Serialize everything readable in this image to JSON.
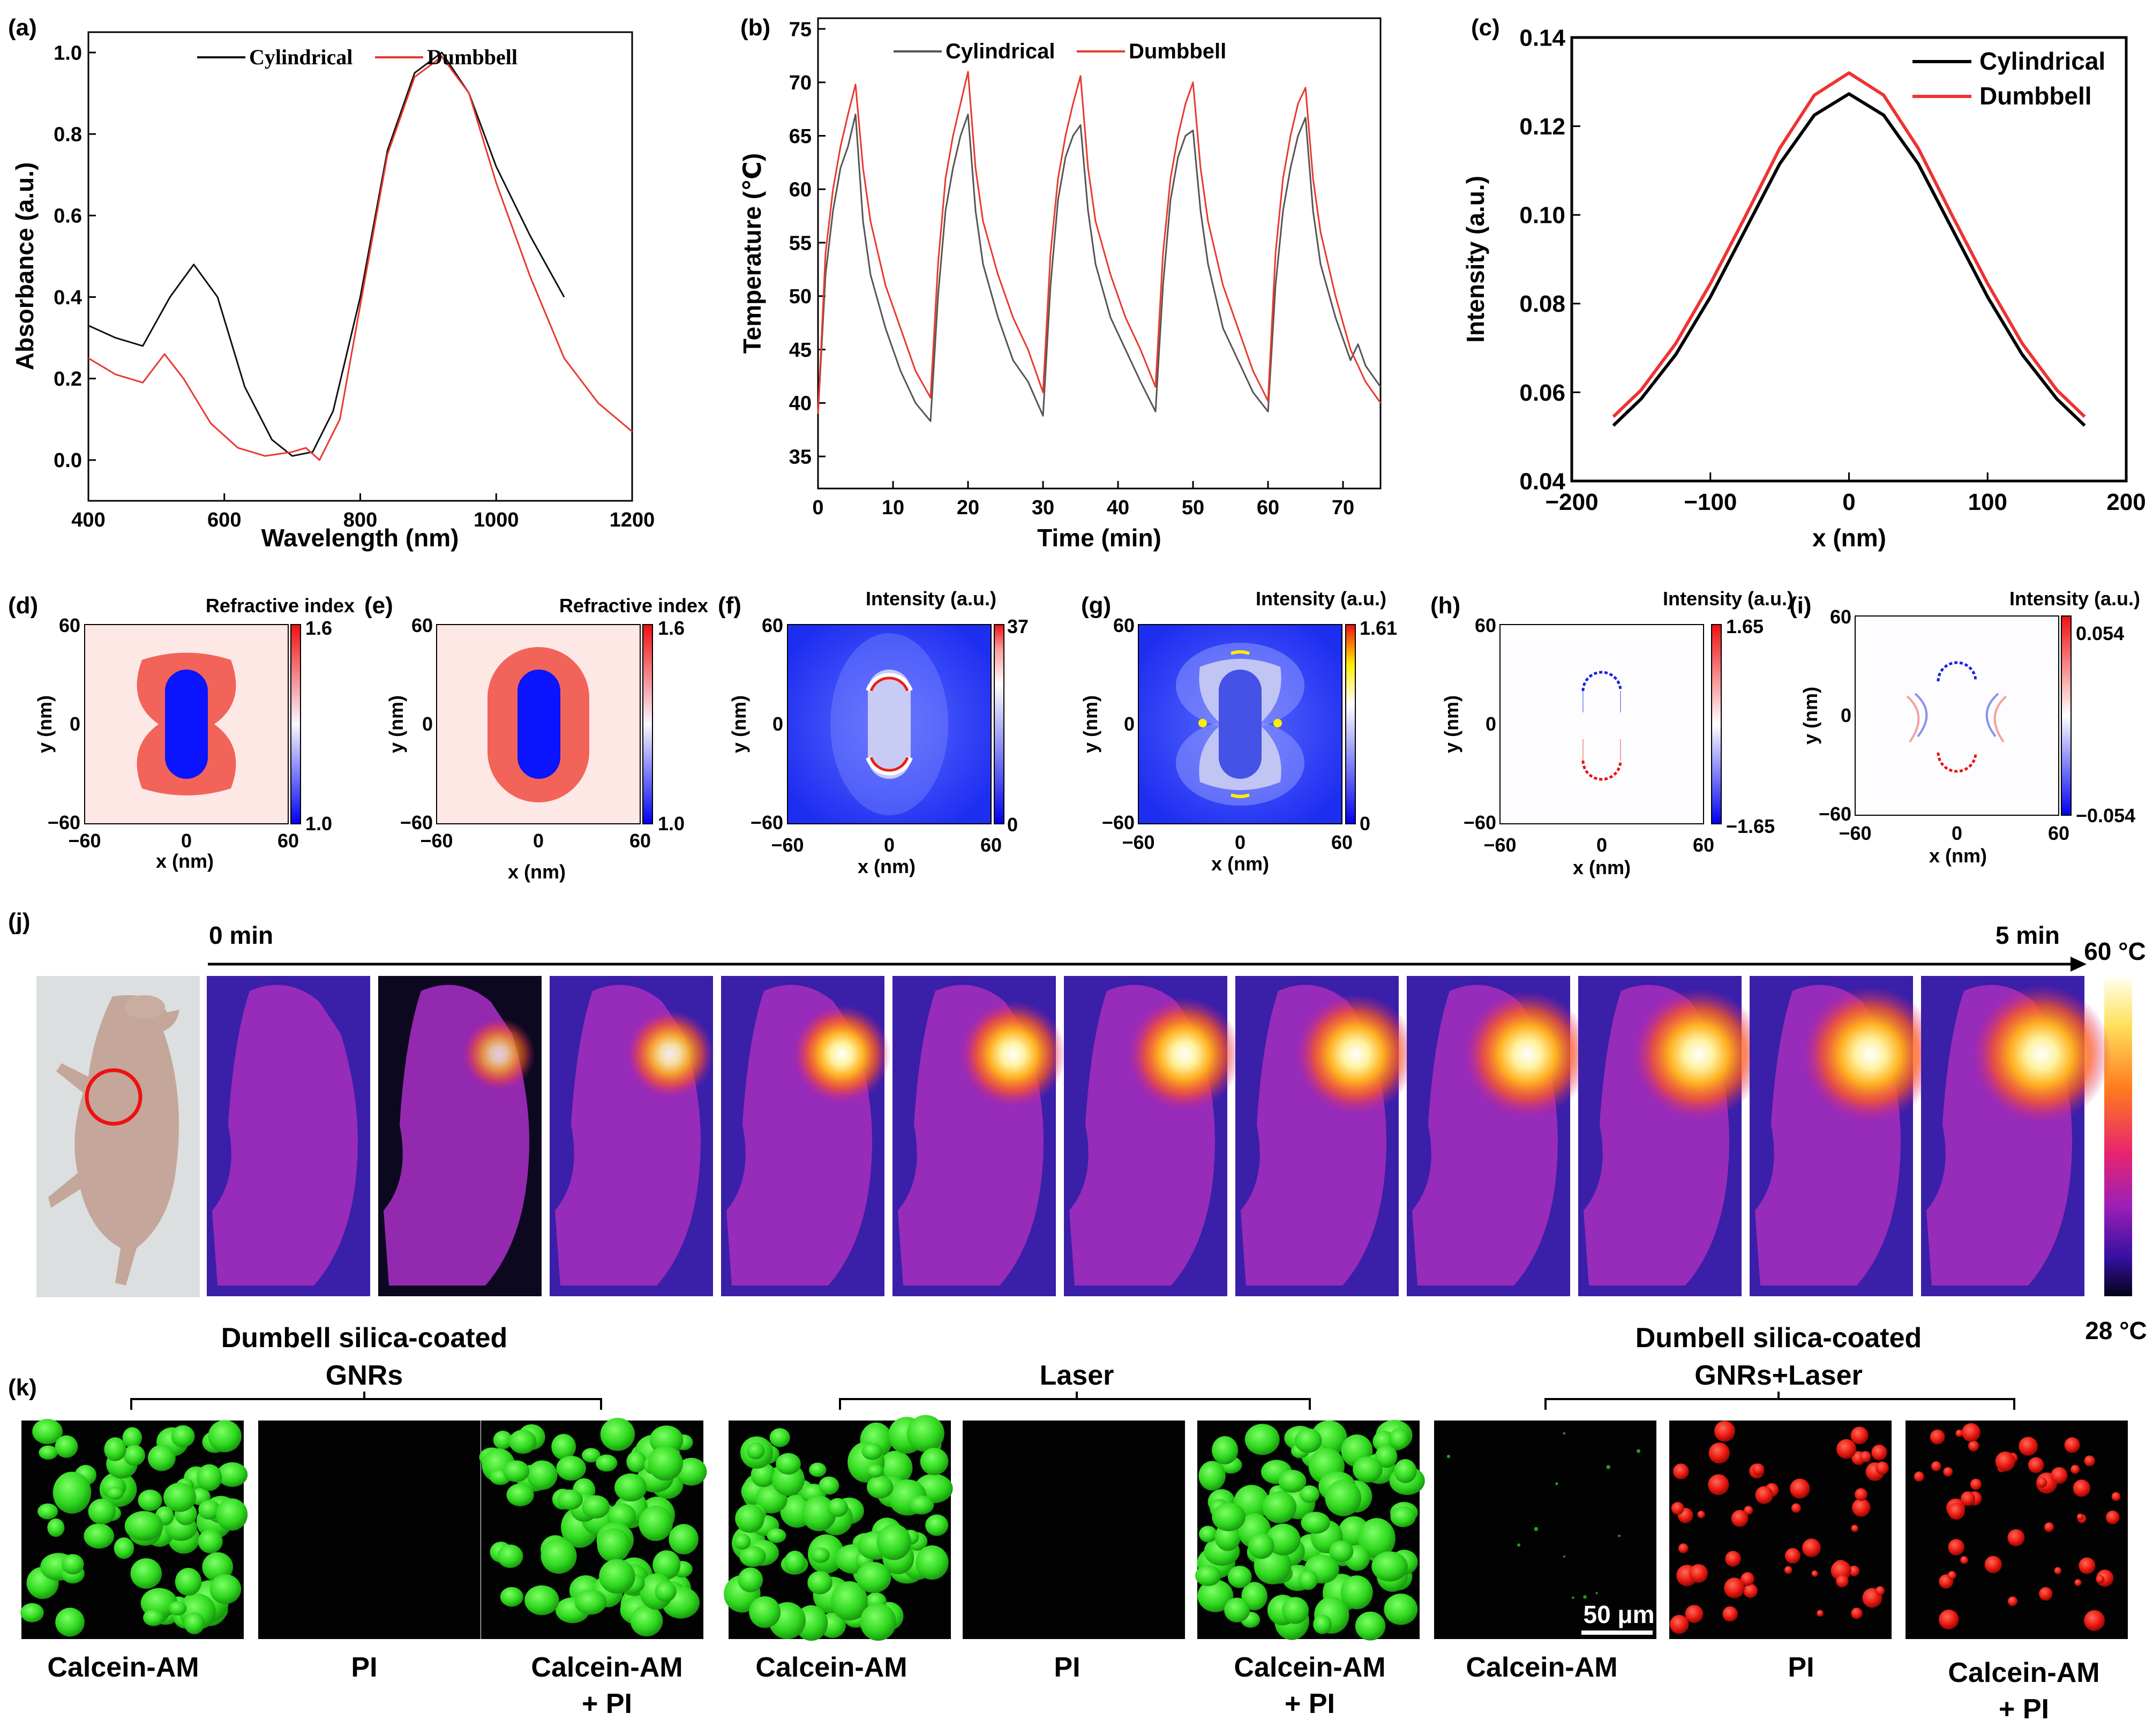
{
  "colors": {
    "black": "#111111",
    "red": "#e8392f",
    "pink": "#fde8e6",
    "blue": "#0a14ff",
    "salmon": "#f26459",
    "green": "#33ee22",
    "cellred": "#ee1c12"
  },
  "panels": {
    "a": "(a)",
    "b": "(b)",
    "c": "(c)",
    "d": "(d)",
    "e": "(e)",
    "f": "(f)",
    "g": "(g)",
    "h": "(h)",
    "i": "(i)",
    "j": "(j)",
    "k": "(k)"
  },
  "chart_data": [
    {
      "id": "a",
      "type": "line",
      "xlabel": "Wavelength (nm)",
      "ylabel": "Absorbance (a.u.)",
      "xlim": [
        400,
        1200
      ],
      "ylim": [
        -0.1,
        1.05
      ],
      "xticks": [
        400,
        600,
        800,
        1000,
        1200
      ],
      "yticks": [
        0.0,
        0.2,
        0.4,
        0.6,
        0.8,
        1.0
      ],
      "xtick_labels": [
        "400",
        "600",
        "800",
        "1000",
        "1200"
      ],
      "ytick_labels": [
        "0.0",
        "0.2",
        "0.4",
        "0.6",
        "0.8",
        "1.0"
      ],
      "legend": [
        "Cylindrical",
        "Dumbbell"
      ],
      "series": [
        {
          "name": "Cylindrical",
          "color": "#111111",
          "x": [
            400,
            440,
            480,
            520,
            555,
            590,
            630,
            670,
            700,
            730,
            760,
            800,
            840,
            880,
            920,
            960,
            1000,
            1050,
            1100
          ],
          "y": [
            0.33,
            0.3,
            0.28,
            0.4,
            0.48,
            0.4,
            0.18,
            0.05,
            0.01,
            0.02,
            0.12,
            0.4,
            0.76,
            0.95,
            1.0,
            0.9,
            0.72,
            0.55,
            0.4
          ]
        },
        {
          "name": "Dumbbell",
          "color": "#e8392f",
          "x": [
            400,
            440,
            480,
            512,
            540,
            580,
            620,
            660,
            700,
            720,
            740,
            770,
            800,
            840,
            880,
            920,
            960,
            1000,
            1050,
            1100,
            1150,
            1200
          ],
          "y": [
            0.25,
            0.21,
            0.19,
            0.26,
            0.2,
            0.09,
            0.03,
            0.01,
            0.02,
            0.03,
            0.0,
            0.1,
            0.38,
            0.75,
            0.94,
            0.99,
            0.9,
            0.68,
            0.45,
            0.25,
            0.14,
            0.07
          ]
        }
      ]
    },
    {
      "id": "b",
      "type": "line",
      "xlabel": "Time (min)",
      "ylabel": "Temperature (℃)",
      "xlim": [
        0,
        75
      ],
      "ylim": [
        32,
        76
      ],
      "xticks": [
        0,
        10,
        20,
        30,
        40,
        50,
        60,
        70
      ],
      "yticks": [
        35,
        40,
        45,
        50,
        55,
        60,
        65,
        70,
        75
      ],
      "xtick_labels": [
        "0",
        "10",
        "20",
        "30",
        "40",
        "50",
        "60",
        "70"
      ],
      "ytick_labels": [
        "35",
        "40",
        "45",
        "50",
        "55",
        "60",
        "65",
        "70",
        "75"
      ],
      "legend": [
        "Cylindrical",
        "Dumbbell"
      ],
      "series": [
        {
          "name": "Cylindrical",
          "color": "#555555",
          "x": [
            0,
            1,
            2,
            3,
            4,
            5,
            6,
            7,
            9,
            11,
            13,
            15,
            16,
            17,
            18,
            19,
            20,
            21,
            22,
            24,
            26,
            28,
            30,
            31,
            32,
            33,
            34,
            35,
            36,
            37,
            39,
            41,
            43,
            45,
            46,
            47,
            48,
            49,
            50,
            51,
            52,
            54,
            56,
            58,
            60,
            61,
            62,
            63,
            64,
            65,
            66,
            67,
            69,
            71,
            72,
            73,
            75
          ],
          "y": [
            39,
            52,
            58,
            62,
            64,
            67,
            57,
            52,
            47,
            43,
            40,
            38.3,
            50,
            58,
            62,
            65,
            67,
            58,
            53,
            48,
            44,
            42,
            38.8,
            51,
            59,
            63,
            65,
            66,
            58,
            53,
            48,
            45,
            42,
            39.2,
            51,
            59,
            63,
            65,
            65.5,
            58,
            53,
            47,
            44,
            41,
            39.2,
            51,
            58,
            62,
            65,
            66.7,
            58,
            53,
            48,
            44,
            45.5,
            43.5,
            41.5
          ]
        },
        {
          "name": "Dumbbell",
          "color": "#e8392f",
          "x": [
            0,
            1,
            2,
            3,
            4,
            5,
            6,
            7,
            9,
            11,
            13,
            15,
            16,
            17,
            18,
            19,
            20,
            21,
            22,
            24,
            26,
            28,
            30,
            31,
            32,
            33,
            34,
            35,
            36,
            37,
            39,
            41,
            43,
            45,
            46,
            47,
            48,
            49,
            50,
            51,
            52,
            54,
            56,
            58,
            60,
            61,
            62,
            63,
            64,
            65,
            66,
            67,
            69,
            71,
            73,
            75
          ],
          "y": [
            39,
            54,
            60,
            64,
            67,
            69.8,
            62,
            57,
            51,
            47,
            43,
            40.5,
            53,
            61,
            65,
            68,
            71,
            62,
            57,
            52,
            48,
            45,
            41,
            54,
            61,
            65,
            68,
            70.6,
            62,
            57,
            52,
            48,
            45,
            41.5,
            54,
            61,
            65,
            68,
            70,
            62,
            57,
            51,
            47,
            43,
            40.2,
            54,
            61,
            65,
            68,
            69.5,
            61,
            56,
            50,
            45,
            42,
            40
          ]
        }
      ]
    },
    {
      "id": "c",
      "type": "line",
      "xlabel": "x (nm)",
      "ylabel": "Intensity (a.u.)",
      "xlim": [
        -200,
        200
      ],
      "ylim": [
        0.04,
        0.14
      ],
      "xticks": [
        -200,
        -100,
        0,
        100,
        200
      ],
      "yticks": [
        0.04,
        0.06,
        0.08,
        0.1,
        0.12,
        0.14
      ],
      "xtick_labels": [
        "−200",
        "−100",
        "0",
        "100",
        "200"
      ],
      "ytick_labels": [
        "0.04",
        "0.06",
        "0.08",
        "0.10",
        "0.12",
        "0.14"
      ],
      "legend": [
        "Cylindrical",
        "Dumbbell"
      ],
      "series": [
        {
          "name": "Cylindrical",
          "color": "#000000",
          "x": [
            -170,
            -150,
            -125,
            -100,
            -75,
            -50,
            -25,
            0,
            25,
            50,
            75,
            100,
            125,
            150,
            170
          ],
          "y": [
            0.0525,
            0.0585,
            0.0685,
            0.0815,
            0.0965,
            0.1115,
            0.1225,
            0.1273,
            0.1225,
            0.1115,
            0.0965,
            0.0815,
            0.0685,
            0.0585,
            0.0525
          ]
        },
        {
          "name": "Dumbbell",
          "color": "#ee3333",
          "x": [
            -170,
            -150,
            -125,
            -100,
            -75,
            -50,
            -25,
            0,
            25,
            50,
            75,
            100,
            125,
            150,
            170
          ],
          "y": [
            0.0545,
            0.0605,
            0.071,
            0.0845,
            0.0995,
            0.115,
            0.127,
            0.132,
            0.127,
            0.115,
            0.0995,
            0.0845,
            0.071,
            0.0605,
            0.0545
          ]
        }
      ]
    }
  ],
  "maps": {
    "xlabel": "x (nm)",
    "ylabel": "y (nm)",
    "ticks": {
      "neg": "−60",
      "zero": "0",
      "pos": "60"
    },
    "d": {
      "title": "Refractive index",
      "cb_max": "1.6",
      "cb_min": "1.0"
    },
    "e": {
      "title": "Refractive index",
      "cb_max": "1.6",
      "cb_min": "1.0"
    },
    "f": {
      "title": "Intensity (a.u.)",
      "cb_max": "37",
      "cb_min": "0"
    },
    "g": {
      "title": "Intensity (a.u.)",
      "cb_max": "1.61",
      "cb_min": "0"
    },
    "h": {
      "title": "Intensity (a.u.)",
      "cb_max": "1.65",
      "cb_min": "−1.65"
    },
    "i": {
      "title": "Intensity (a.u.)",
      "cb_max": "0.054",
      "cb_min": "−0.054"
    }
  },
  "thermal": {
    "start": "0 min",
    "end": "5 min",
    "max_temp": "60 °C",
    "min_temp": "28 °C",
    "hotspot_levels": [
      0.0,
      0.35,
      0.5,
      0.6,
      0.68,
      0.75,
      0.82,
      0.88,
      0.93,
      0.97,
      1.0
    ]
  },
  "cells": {
    "groups": [
      {
        "title": "Dumbell silica-coated GNRs",
        "title_line1": "Dumbell silica-coated",
        "title_line2": "GNRs"
      },
      {
        "title": "Laser"
      },
      {
        "title": "Dumbell silica-coated GNRs+Laser",
        "title_line1": "Dumbell silica-coated",
        "title_line2": "GNRs+Laser"
      }
    ],
    "labels": {
      "calcein": "Calcein-AM",
      "pi": "PI",
      "merge1": "Calcein-AM",
      "merge2": "+ PI"
    },
    "scale_bar": "50 μm"
  }
}
